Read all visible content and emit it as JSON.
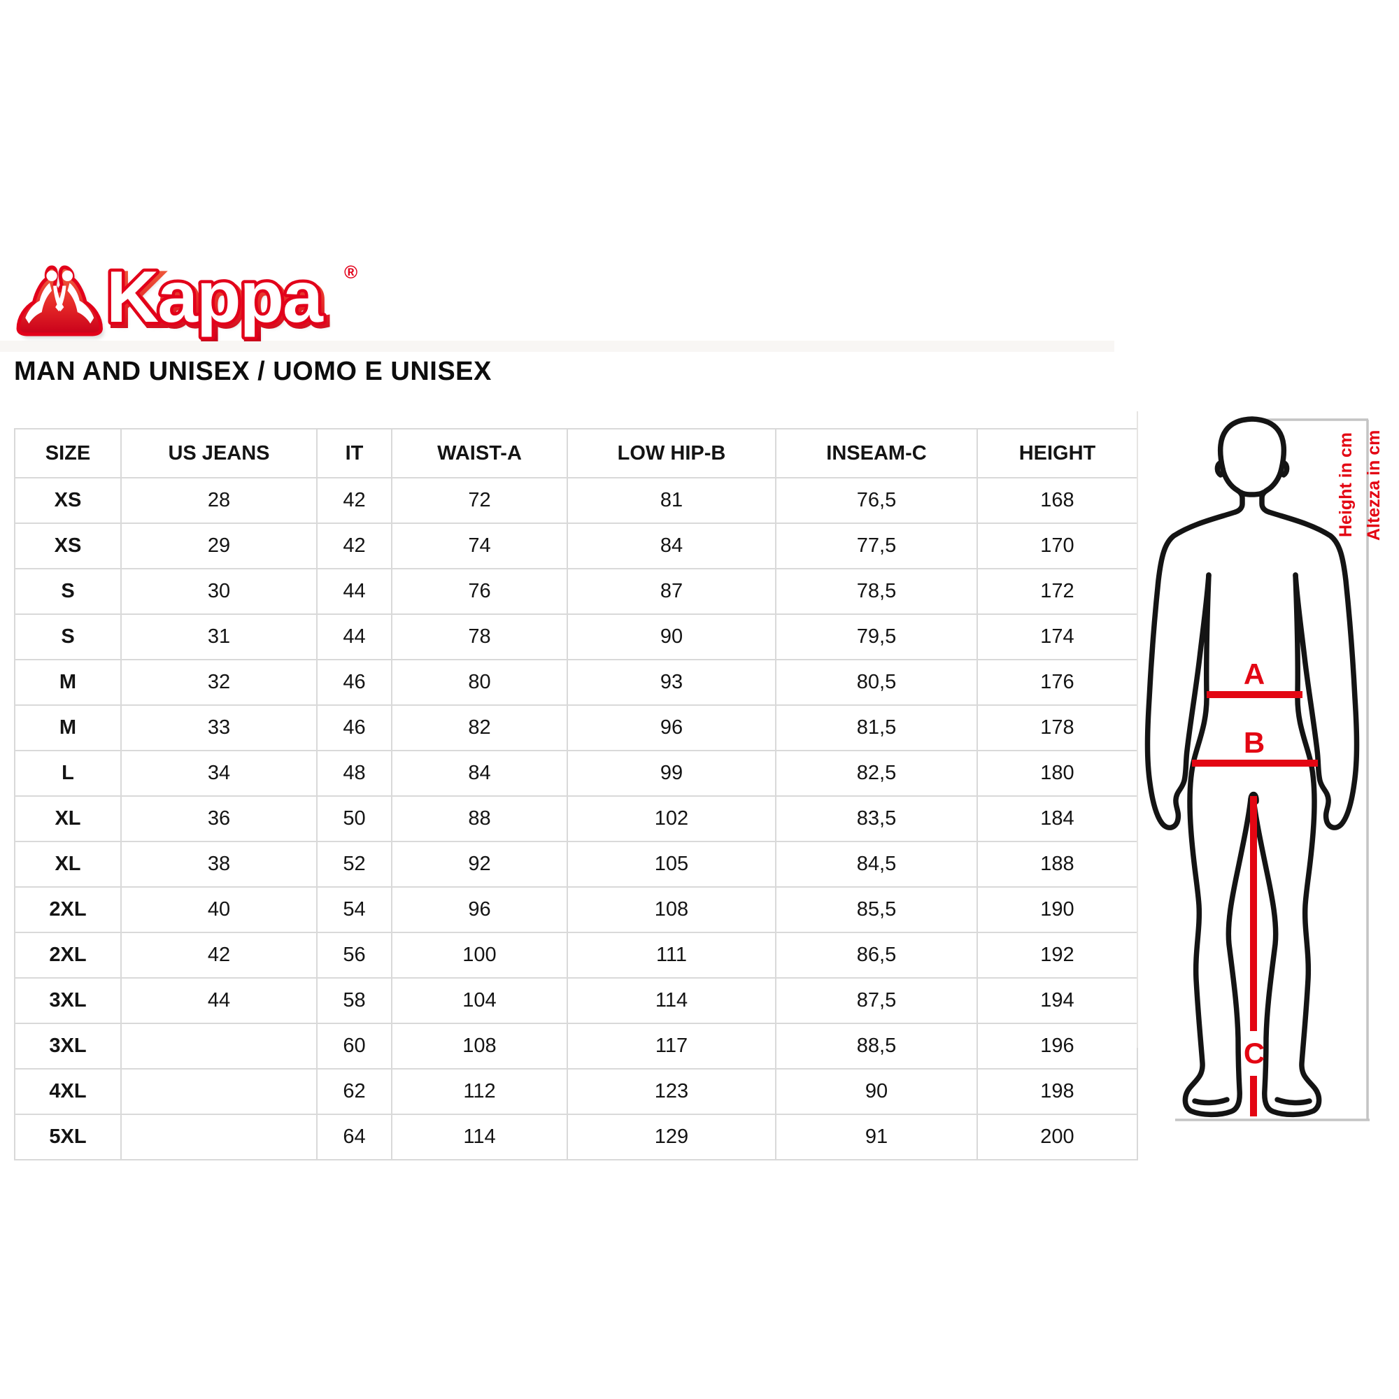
{
  "logo": {
    "brand": "Kappa",
    "registered": "®"
  },
  "page_title": "MAN AND UNISEX / UOMO E UNISEX",
  "colors": {
    "brand_red": "#e2001a",
    "mark_red": "#e30613",
    "table_border": "#d9d9d9",
    "measure_gray": "#c4c4c4",
    "text": "#141414"
  },
  "size_table": {
    "columns": [
      "SIZE",
      "US JEANS",
      "IT",
      "WAIST-A",
      "LOW HIP-B",
      "INSEAM-C",
      "HEIGHT"
    ],
    "rows": [
      [
        "XS",
        "28",
        "42",
        "72",
        "81",
        "76,5",
        "168"
      ],
      [
        "XS",
        "29",
        "42",
        "74",
        "84",
        "77,5",
        "170"
      ],
      [
        "S",
        "30",
        "44",
        "76",
        "87",
        "78,5",
        "172"
      ],
      [
        "S",
        "31",
        "44",
        "78",
        "90",
        "79,5",
        "174"
      ],
      [
        "M",
        "32",
        "46",
        "80",
        "93",
        "80,5",
        "176"
      ],
      [
        "M",
        "33",
        "46",
        "82",
        "96",
        "81,5",
        "178"
      ],
      [
        "L",
        "34",
        "48",
        "84",
        "99",
        "82,5",
        "180"
      ],
      [
        "XL",
        "36",
        "50",
        "88",
        "102",
        "83,5",
        "184"
      ],
      [
        "XL",
        "38",
        "52",
        "92",
        "105",
        "84,5",
        "188"
      ],
      [
        "2XL",
        "40",
        "54",
        "96",
        "108",
        "85,5",
        "190"
      ],
      [
        "2XL",
        "42",
        "56",
        "100",
        "111",
        "86,5",
        "192"
      ],
      [
        "3XL",
        "44",
        "58",
        "104",
        "114",
        "87,5",
        "194"
      ],
      [
        "3XL",
        "",
        "60",
        "108",
        "117",
        "88,5",
        "196"
      ],
      [
        "4XL",
        "",
        "62",
        "112",
        "123",
        "90",
        "198"
      ],
      [
        "5XL",
        "",
        "64",
        "114",
        "129",
        "91",
        "200"
      ]
    ]
  },
  "figure": {
    "label_a": "A",
    "label_b": "B",
    "label_c": "C",
    "height_note_en": "Height in cm",
    "height_note_it": "Altezza in cm"
  }
}
